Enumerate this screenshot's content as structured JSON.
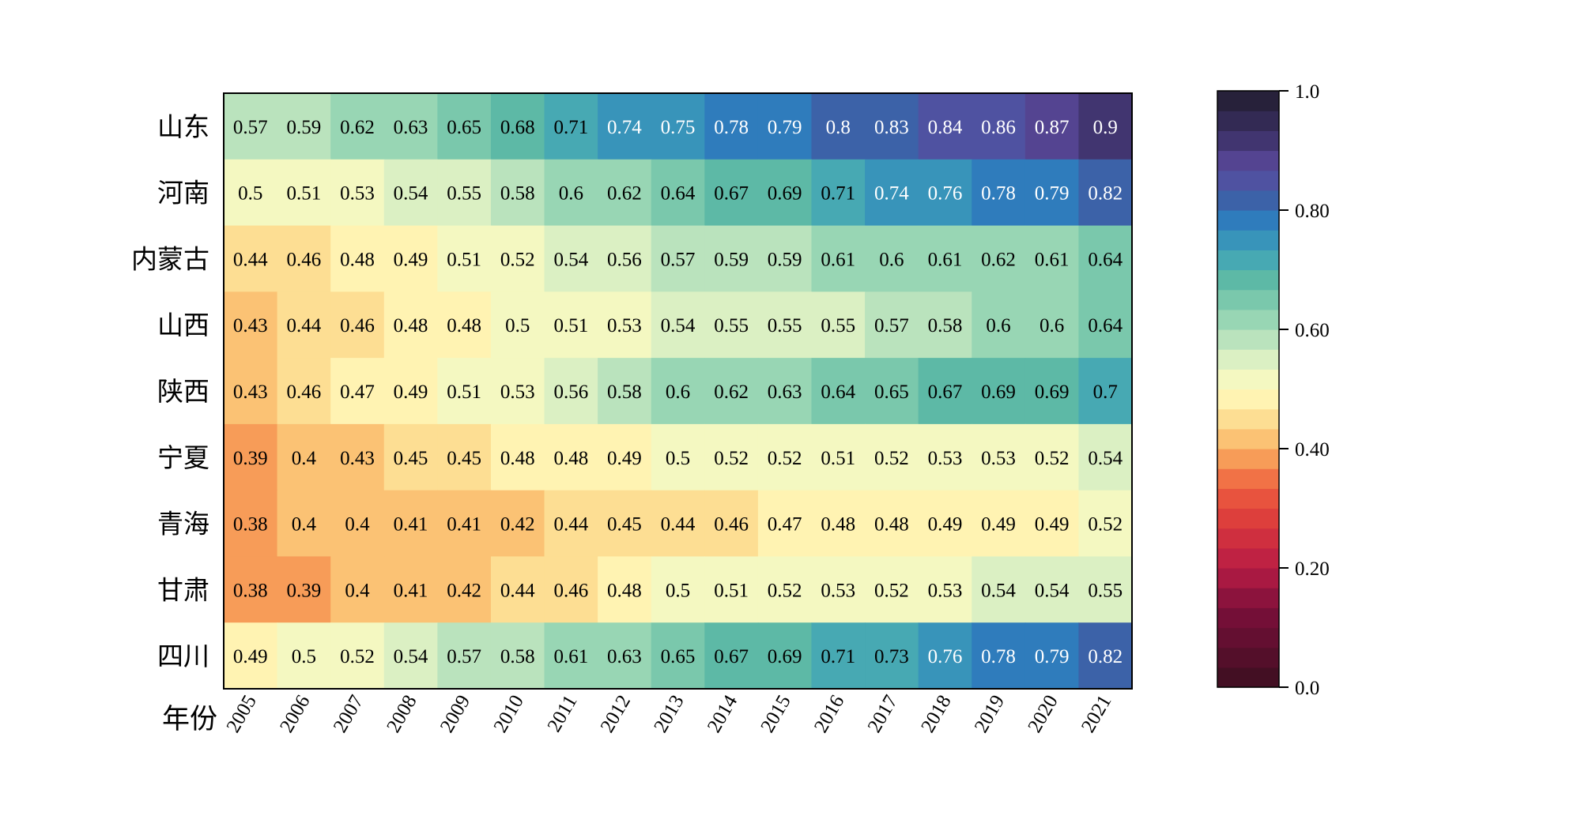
{
  "chart_data": {
    "type": "heatmap",
    "title": "",
    "xlabel": "年份",
    "ylabel": "",
    "x": [
      "2005",
      "2006",
      "2007",
      "2008",
      "2009",
      "2010",
      "2011",
      "2012",
      "2013",
      "2014",
      "2015",
      "2016",
      "2017",
      "2018",
      "2019",
      "2020",
      "2021"
    ],
    "y": [
      "山东",
      "河南",
      "内蒙古",
      "山西",
      "陕西",
      "宁夏",
      "青海",
      "甘肃",
      "四川"
    ],
    "values": [
      [
        0.57,
        0.59,
        0.62,
        0.63,
        0.65,
        0.68,
        0.71,
        0.74,
        0.75,
        0.78,
        0.79,
        0.8,
        0.83,
        0.84,
        0.86,
        0.87,
        0.9
      ],
      [
        0.5,
        0.51,
        0.53,
        0.54,
        0.55,
        0.58,
        0.6,
        0.62,
        0.64,
        0.67,
        0.69,
        0.71,
        0.74,
        0.76,
        0.78,
        0.79,
        0.82
      ],
      [
        0.44,
        0.46,
        0.48,
        0.49,
        0.51,
        0.52,
        0.54,
        0.56,
        0.57,
        0.59,
        0.59,
        0.61,
        0.6,
        0.61,
        0.62,
        0.61,
        0.64
      ],
      [
        0.43,
        0.44,
        0.46,
        0.48,
        0.48,
        0.5,
        0.51,
        0.53,
        0.54,
        0.55,
        0.55,
        0.55,
        0.57,
        0.58,
        0.6,
        0.6,
        0.64
      ],
      [
        0.43,
        0.46,
        0.47,
        0.49,
        0.51,
        0.53,
        0.56,
        0.58,
        0.6,
        0.62,
        0.63,
        0.64,
        0.65,
        0.67,
        0.69,
        0.69,
        0.7
      ],
      [
        0.39,
        0.4,
        0.43,
        0.45,
        0.45,
        0.48,
        0.48,
        0.49,
        0.5,
        0.52,
        0.52,
        0.51,
        0.52,
        0.53,
        0.53,
        0.52,
        0.54
      ],
      [
        0.38,
        0.4,
        0.4,
        0.41,
        0.41,
        0.42,
        0.44,
        0.45,
        0.44,
        0.46,
        0.47,
        0.48,
        0.48,
        0.49,
        0.49,
        0.49,
        0.52
      ],
      [
        0.38,
        0.39,
        0.4,
        0.41,
        0.42,
        0.44,
        0.46,
        0.48,
        0.5,
        0.51,
        0.52,
        0.53,
        0.52,
        0.53,
        0.54,
        0.54,
        0.55
      ],
      [
        0.49,
        0.5,
        0.52,
        0.54,
        0.57,
        0.58,
        0.61,
        0.63,
        0.65,
        0.67,
        0.69,
        0.71,
        0.73,
        0.76,
        0.78,
        0.79,
        0.82
      ]
    ],
    "colorbar": {
      "range": [
        0.0,
        1.0
      ],
      "ticks": [
        0.0,
        0.2,
        0.4,
        0.6,
        0.8,
        1.0
      ],
      "tick_labels": [
        "0.0",
        "0.20",
        "0.40",
        "0.60",
        "0.80",
        "1.0"
      ],
      "levels": 30,
      "colormap": [
        "#3b0f20",
        "#7b0f3a",
        "#b71c45",
        "#d9373c",
        "#ec5b3e",
        "#f58a4e",
        "#f9b264",
        "#fdd88a",
        "#fff7b8",
        "#eef9c6",
        "#c8e8c0",
        "#95d5b3",
        "#5fbba5",
        "#3ea2b8",
        "#2e7fbe",
        "#3d5fa6",
        "#5b4a9e",
        "#3a2f63",
        "#211c2d"
      ],
      "colormap_stops": [
        0.0,
        0.13,
        0.2,
        0.27,
        0.33,
        0.37,
        0.4,
        0.44,
        0.49,
        0.53,
        0.57,
        0.62,
        0.68,
        0.73,
        0.78,
        0.82,
        0.87,
        0.93,
        1.0
      ]
    },
    "grid": false
  }
}
